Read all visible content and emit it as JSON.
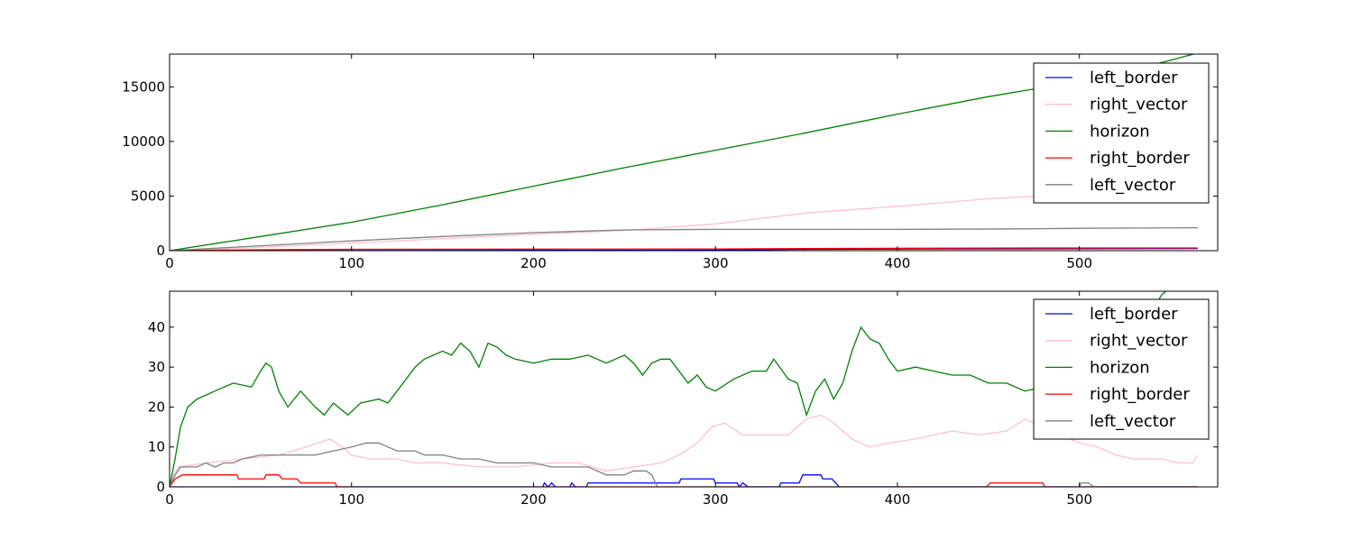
{
  "chart_data": [
    {
      "type": "line",
      "title": "",
      "xlabel": "",
      "ylabel": "",
      "xlim": [
        0,
        576
      ],
      "ylim": [
        0,
        18000
      ],
      "xticks": [
        0,
        100,
        200,
        300,
        400,
        500
      ],
      "yticks": [
        0,
        5000,
        10000,
        15000
      ],
      "grid": false,
      "legend_position": "top-right",
      "series": [
        {
          "name": "left_border",
          "color": "#0000ff",
          "points": [
            [
              0,
              0
            ],
            [
              100,
              10
            ],
            [
              200,
              25
            ],
            [
              300,
              60
            ],
            [
              350,
              120
            ],
            [
              400,
              150
            ],
            [
              565,
              200
            ]
          ]
        },
        {
          "name": "right_vector",
          "color": "#ffc0cb",
          "points": [
            [
              0,
              0
            ],
            [
              50,
              300
            ],
            [
              100,
              700
            ],
            [
              150,
              1100
            ],
            [
              200,
              1500
            ],
            [
              250,
              1850
            ],
            [
              300,
              2450
            ],
            [
              350,
              3450
            ],
            [
              400,
              4050
            ],
            [
              450,
              4750
            ],
            [
              500,
              5200
            ],
            [
              565,
              5500
            ]
          ]
        },
        {
          "name": "horizon",
          "color": "#008000",
          "points": [
            [
              0,
              0
            ],
            [
              50,
              1300
            ],
            [
              100,
              2600
            ],
            [
              150,
              4200
            ],
            [
              200,
              5900
            ],
            [
              250,
              7600
            ],
            [
              300,
              9200
            ],
            [
              350,
              10800
            ],
            [
              400,
              12500
            ],
            [
              450,
              14100
            ],
            [
              500,
              15500
            ],
            [
              540,
              17000
            ],
            [
              565,
              18100
            ]
          ]
        },
        {
          "name": "right_border",
          "color": "#ff0000",
          "points": [
            [
              0,
              0
            ],
            [
              50,
              80
            ],
            [
              100,
              120
            ],
            [
              200,
              140
            ],
            [
              300,
              160
            ],
            [
              350,
              200
            ],
            [
              450,
              240
            ],
            [
              565,
              250
            ]
          ]
        },
        {
          "name": "left_vector",
          "color": "#808080",
          "points": [
            [
              0,
              0
            ],
            [
              50,
              450
            ],
            [
              100,
              900
            ],
            [
              150,
              1300
            ],
            [
              200,
              1650
            ],
            [
              250,
              1900
            ],
            [
              300,
              1950
            ],
            [
              400,
              1950
            ],
            [
              470,
              2000
            ],
            [
              500,
              2050
            ],
            [
              565,
              2100
            ]
          ]
        }
      ]
    },
    {
      "type": "line",
      "title": "",
      "xlabel": "",
      "ylabel": "",
      "xlim": [
        0,
        576
      ],
      "ylim": [
        0,
        49
      ],
      "xticks": [
        0,
        100,
        200,
        300,
        400,
        500
      ],
      "yticks": [
        0,
        10,
        20,
        30,
        40
      ],
      "grid": false,
      "legend_position": "top-right",
      "series": [
        {
          "name": "left_border",
          "color": "#0000ff",
          "points": [
            [
              0,
              0
            ],
            [
              205,
              0
            ],
            [
              206,
              1
            ],
            [
              208,
              0
            ],
            [
              210,
              1
            ],
            [
              212,
              0
            ],
            [
              220,
              0
            ],
            [
              221,
              1
            ],
            [
              223,
              0
            ],
            [
              229,
              0
            ],
            [
              230,
              1
            ],
            [
              280,
              1
            ],
            [
              281,
              2
            ],
            [
              299,
              2
            ],
            [
              300,
              1
            ],
            [
              312,
              1
            ],
            [
              313,
              0
            ],
            [
              315,
              1
            ],
            [
              318,
              0
            ],
            [
              335,
              0
            ],
            [
              336,
              1
            ],
            [
              346,
              1
            ],
            [
              347,
              2
            ],
            [
              348,
              3
            ],
            [
              358,
              3
            ],
            [
              359,
              2
            ],
            [
              364,
              2
            ],
            [
              366,
              1
            ],
            [
              368,
              0
            ],
            [
              565,
              0
            ]
          ]
        },
        {
          "name": "right_vector",
          "color": "#ffc0cb",
          "points": [
            [
              0,
              0
            ],
            [
              2,
              3
            ],
            [
              5,
              5
            ],
            [
              20,
              6
            ],
            [
              40,
              7
            ],
            [
              60,
              8
            ],
            [
              75,
              10
            ],
            [
              88,
              12
            ],
            [
              95,
              10
            ],
            [
              100,
              8
            ],
            [
              110,
              7
            ],
            [
              125,
              7
            ],
            [
              135,
              6
            ],
            [
              150,
              6
            ],
            [
              170,
              5
            ],
            [
              190,
              5
            ],
            [
              210,
              6
            ],
            [
              225,
              6
            ],
            [
              240,
              4
            ],
            [
              255,
              5
            ],
            [
              270,
              6
            ],
            [
              280,
              8
            ],
            [
              290,
              11
            ],
            [
              298,
              15
            ],
            [
              305,
              16
            ],
            [
              315,
              13
            ],
            [
              330,
              13
            ],
            [
              340,
              13
            ],
            [
              350,
              17
            ],
            [
              358,
              18
            ],
            [
              365,
              16
            ],
            [
              375,
              12
            ],
            [
              385,
              10
            ],
            [
              395,
              11
            ],
            [
              410,
              12
            ],
            [
              420,
              13
            ],
            [
              430,
              14
            ],
            [
              445,
              13
            ],
            [
              460,
              14
            ],
            [
              470,
              17
            ],
            [
              480,
              15
            ],
            [
              490,
              13
            ],
            [
              500,
              11
            ],
            [
              510,
              10
            ],
            [
              515,
              9
            ],
            [
              520,
              8
            ],
            [
              530,
              7
            ],
            [
              545,
              7
            ],
            [
              555,
              6
            ],
            [
              562,
              6
            ],
            [
              565,
              8
            ]
          ]
        },
        {
          "name": "horizon",
          "color": "#008000",
          "points": [
            [
              0,
              0
            ],
            [
              3,
              7
            ],
            [
              6,
              15
            ],
            [
              10,
              20
            ],
            [
              15,
              22
            ],
            [
              25,
              24
            ],
            [
              35,
              26
            ],
            [
              45,
              25
            ],
            [
              50,
              29
            ],
            [
              53,
              31
            ],
            [
              56,
              30
            ],
            [
              60,
              24
            ],
            [
              65,
              20
            ],
            [
              72,
              24
            ],
            [
              80,
              20
            ],
            [
              85,
              18
            ],
            [
              90,
              21
            ],
            [
              98,
              18
            ],
            [
              105,
              21
            ],
            [
              115,
              22
            ],
            [
              120,
              21
            ],
            [
              125,
              24
            ],
            [
              130,
              27
            ],
            [
              135,
              30
            ],
            [
              140,
              32
            ],
            [
              145,
              33
            ],
            [
              150,
              34
            ],
            [
              155,
              33
            ],
            [
              160,
              36
            ],
            [
              165,
              34
            ],
            [
              170,
              30
            ],
            [
              175,
              36
            ],
            [
              180,
              35
            ],
            [
              185,
              33
            ],
            [
              190,
              32
            ],
            [
              200,
              31
            ],
            [
              210,
              32
            ],
            [
              220,
              32
            ],
            [
              230,
              33
            ],
            [
              240,
              31
            ],
            [
              245,
              32
            ],
            [
              250,
              33
            ],
            [
              255,
              31
            ],
            [
              260,
              28
            ],
            [
              265,
              31
            ],
            [
              270,
              32
            ],
            [
              275,
              32
            ],
            [
              280,
              29
            ],
            [
              285,
              26
            ],
            [
              290,
              28
            ],
            [
              295,
              25
            ],
            [
              300,
              24
            ],
            [
              310,
              27
            ],
            [
              320,
              29
            ],
            [
              328,
              29
            ],
            [
              332,
              32
            ],
            [
              340,
              27
            ],
            [
              345,
              26
            ],
            [
              350,
              18
            ],
            [
              355,
              24
            ],
            [
              360,
              27
            ],
            [
              365,
              22
            ],
            [
              370,
              26
            ],
            [
              375,
              34
            ],
            [
              380,
              40
            ],
            [
              385,
              37
            ],
            [
              390,
              36
            ],
            [
              395,
              32
            ],
            [
              400,
              29
            ],
            [
              410,
              30
            ],
            [
              420,
              29
            ],
            [
              430,
              28
            ],
            [
              440,
              28
            ],
            [
              450,
              26
            ],
            [
              460,
              26
            ],
            [
              470,
              24
            ],
            [
              480,
              25
            ],
            [
              490,
              23
            ],
            [
              500,
              24
            ],
            [
              510,
              26
            ],
            [
              520,
              28
            ],
            [
              530,
              30
            ],
            [
              540,
              44
            ],
            [
              545,
              48
            ],
            [
              550,
              50
            ]
          ]
        },
        {
          "name": "right_border",
          "color": "#ff0000",
          "points": [
            [
              0,
              0
            ],
            [
              3,
              2
            ],
            [
              7,
              3
            ],
            [
              37,
              3
            ],
            [
              38,
              2
            ],
            [
              52,
              2
            ],
            [
              53,
              3
            ],
            [
              60,
              3
            ],
            [
              62,
              2
            ],
            [
              70,
              2
            ],
            [
              72,
              1
            ],
            [
              91,
              1
            ],
            [
              92,
              0
            ],
            [
              449,
              0
            ],
            [
              451,
              1
            ],
            [
              480,
              1
            ],
            [
              481,
              0
            ],
            [
              565,
              0
            ]
          ]
        },
        {
          "name": "left_vector",
          "color": "#808080",
          "points": [
            [
              0,
              0
            ],
            [
              3,
              3
            ],
            [
              6,
              5
            ],
            [
              15,
              5
            ],
            [
              20,
              6
            ],
            [
              25,
              5
            ],
            [
              30,
              6
            ],
            [
              35,
              6
            ],
            [
              40,
              7
            ],
            [
              50,
              8
            ],
            [
              60,
              8
            ],
            [
              70,
              8
            ],
            [
              80,
              8
            ],
            [
              90,
              9
            ],
            [
              100,
              10
            ],
            [
              108,
              11
            ],
            [
              115,
              11
            ],
            [
              120,
              10
            ],
            [
              125,
              9
            ],
            [
              135,
              9
            ],
            [
              140,
              8
            ],
            [
              150,
              8
            ],
            [
              160,
              7
            ],
            [
              170,
              7
            ],
            [
              180,
              6
            ],
            [
              200,
              6
            ],
            [
              210,
              5
            ],
            [
              230,
              5
            ],
            [
              240,
              3
            ],
            [
              250,
              3
            ],
            [
              255,
              4
            ],
            [
              262,
              4
            ],
            [
              265,
              3
            ],
            [
              268,
              0
            ],
            [
              500,
              0
            ],
            [
              501,
              1
            ],
            [
              505,
              1
            ],
            [
              508,
              0
            ],
            [
              565,
              0
            ]
          ]
        }
      ]
    }
  ]
}
